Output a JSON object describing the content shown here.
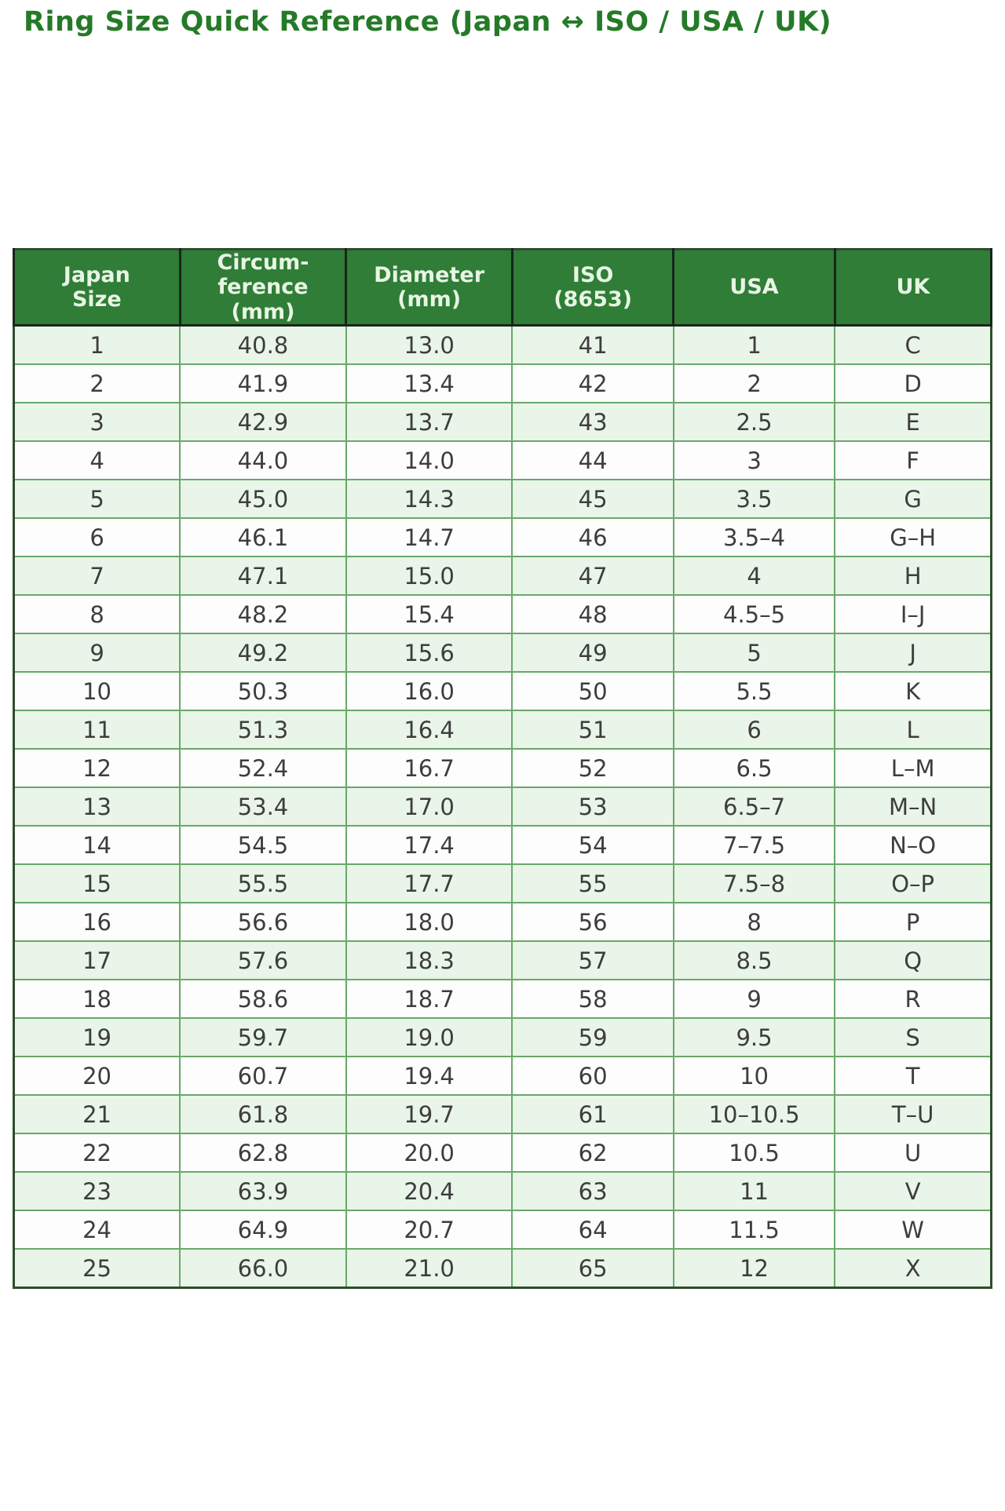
{
  "page": {
    "title": "Ring Size Quick Reference (Japan ↔ ISO / USA / UK)"
  },
  "colors": {
    "title": "#257a28",
    "header_bg": "#2f7d36",
    "header_text": "#e8f5e4",
    "row_odd": "#e9f5e9",
    "row_even": "#fcfdfc",
    "grid": "#69a869",
    "cell_text": "#3d3d3d"
  },
  "chart_data": {
    "type": "table",
    "title": "Ring Size Quick Reference (Japan ↔ ISO / USA / UK)",
    "columns": [
      "Japan\nSize",
      "Circum-\nference\n(mm)",
      "Diameter\n(mm)",
      "ISO\n(8653)",
      "USA",
      "UK"
    ],
    "rows": [
      [
        "1",
        "40.8",
        "13.0",
        "41",
        "1",
        "C"
      ],
      [
        "2",
        "41.9",
        "13.4",
        "42",
        "2",
        "D"
      ],
      [
        "3",
        "42.9",
        "13.7",
        "43",
        "2.5",
        "E"
      ],
      [
        "4",
        "44.0",
        "14.0",
        "44",
        "3",
        "F"
      ],
      [
        "5",
        "45.0",
        "14.3",
        "45",
        "3.5",
        "G"
      ],
      [
        "6",
        "46.1",
        "14.7",
        "46",
        "3.5–4",
        "G–H"
      ],
      [
        "7",
        "47.1",
        "15.0",
        "47",
        "4",
        "H"
      ],
      [
        "8",
        "48.2",
        "15.4",
        "48",
        "4.5–5",
        "I–J"
      ],
      [
        "9",
        "49.2",
        "15.6",
        "49",
        "5",
        "J"
      ],
      [
        "10",
        "50.3",
        "16.0",
        "50",
        "5.5",
        "K"
      ],
      [
        "11",
        "51.3",
        "16.4",
        "51",
        "6",
        "L"
      ],
      [
        "12",
        "52.4",
        "16.7",
        "52",
        "6.5",
        "L–M"
      ],
      [
        "13",
        "53.4",
        "17.0",
        "53",
        "6.5–7",
        "M–N"
      ],
      [
        "14",
        "54.5",
        "17.4",
        "54",
        "7–7.5",
        "N–O"
      ],
      [
        "15",
        "55.5",
        "17.7",
        "55",
        "7.5–8",
        "O–P"
      ],
      [
        "16",
        "56.6",
        "18.0",
        "56",
        "8",
        "P"
      ],
      [
        "17",
        "57.6",
        "18.3",
        "57",
        "8.5",
        "Q"
      ],
      [
        "18",
        "58.6",
        "18.7",
        "58",
        "9",
        "R"
      ],
      [
        "19",
        "59.7",
        "19.0",
        "59",
        "9.5",
        "S"
      ],
      [
        "20",
        "60.7",
        "19.4",
        "60",
        "10",
        "T"
      ],
      [
        "21",
        "61.8",
        "19.7",
        "61",
        "10–10.5",
        "T–U"
      ],
      [
        "22",
        "62.8",
        "20.0",
        "62",
        "10.5",
        "U"
      ],
      [
        "23",
        "63.9",
        "20.4",
        "63",
        "11",
        "V"
      ],
      [
        "24",
        "64.9",
        "20.7",
        "64",
        "11.5",
        "W"
      ],
      [
        "25",
        "66.0",
        "21.0",
        "65",
        "12",
        "X"
      ]
    ],
    "column_widths_pct": [
      17,
      17,
      17,
      16.5,
      16.5,
      16
    ]
  }
}
